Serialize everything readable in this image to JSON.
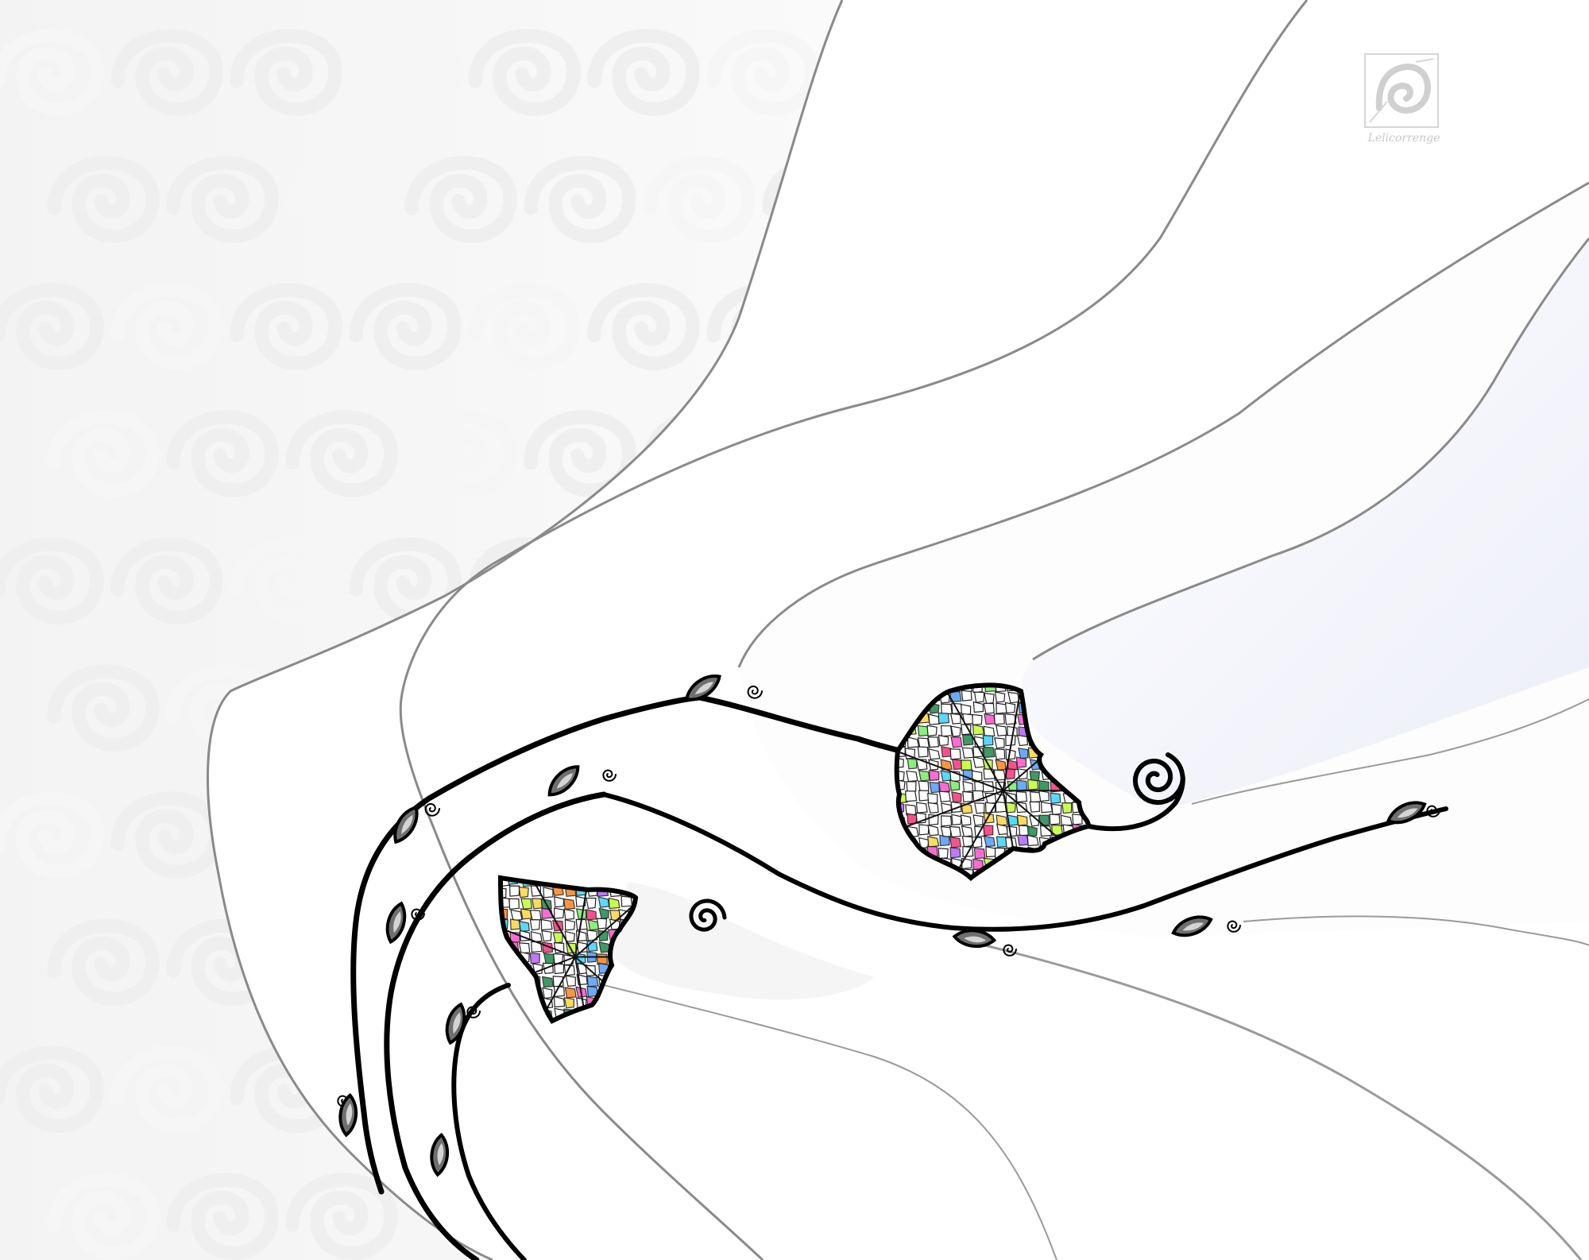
{
  "artwork": {
    "colors": {
      "background": "#ffffff",
      "pattern": "#efefef",
      "pattern_light": "#f6f6f6",
      "band_fill": "#fbfbfb",
      "band_tint": "#f1f2f9",
      "band_edge": "#8a8a8a",
      "vine": "#000000",
      "bud_fill": "#6f6f6f",
      "leaf_bg": "#ffffff",
      "leaf_vein": "#222222",
      "mosaic": [
        "#ff3d7f",
        "#ffd84a",
        "#7cf06c",
        "#44d7ff",
        "#b66bff",
        "#ff8a2a",
        "#2a8f55",
        "#ff5bd1",
        "#59a3ff",
        "#c6ff3a"
      ]
    },
    "icons": {
      "watermark": "spiral-rose-logo-icon",
      "bud": "leaf-bud-icon",
      "curl": "spiral-tendril-icon",
      "leaf": "mosaic-ivy-leaf-icon"
    },
    "signature_text": "Lelicorrenge"
  }
}
